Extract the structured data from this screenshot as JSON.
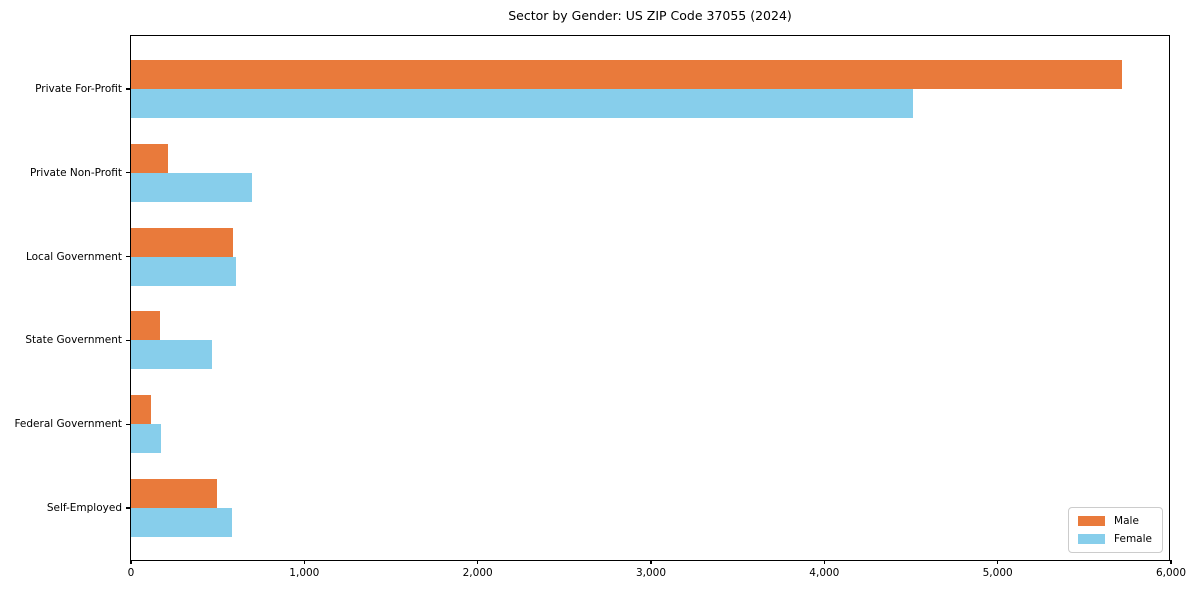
{
  "chart_data": {
    "type": "bar",
    "orientation": "horizontal",
    "title": "Sector by Gender: US ZIP Code 37055 (2024)",
    "categories": [
      "Private For-Profit",
      "Private Non-Profit",
      "Local Government",
      "State Government",
      "Federal Government",
      "Self-Employed"
    ],
    "series": [
      {
        "name": "Male",
        "color": "#e97a3b",
        "values": [
          5720,
          215,
          590,
          170,
          115,
          495
        ]
      },
      {
        "name": "Female",
        "color": "#87ceeb",
        "values": [
          4510,
          700,
          605,
          465,
          175,
          585
        ]
      }
    ],
    "xlabel": "",
    "ylabel": "",
    "xlim": [
      0,
      6000
    ],
    "x_ticks": [
      0,
      1000,
      2000,
      3000,
      4000,
      5000,
      6000
    ],
    "x_tick_labels": [
      "0",
      "1,000",
      "2,000",
      "3,000",
      "4,000",
      "5,000",
      "6,000"
    ],
    "grid": false,
    "legend_position": "lower right"
  }
}
